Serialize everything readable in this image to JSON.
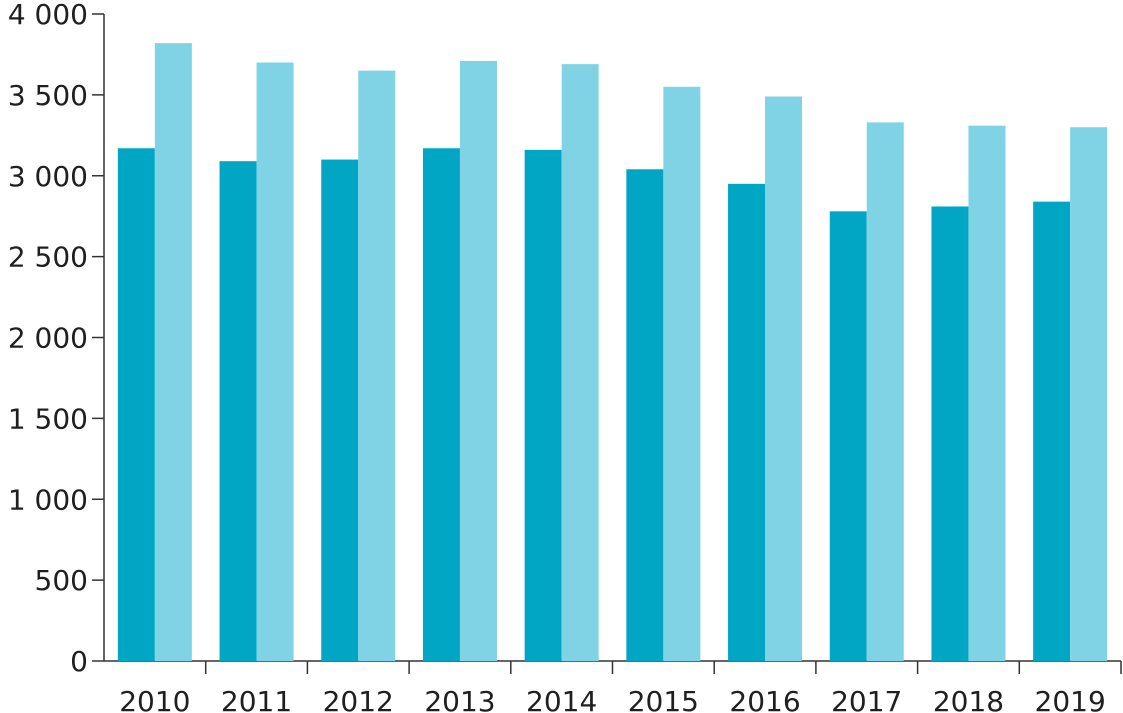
{
  "chart_data": {
    "type": "bar",
    "categories": [
      "2010",
      "2011",
      "2012",
      "2013",
      "2014",
      "2015",
      "2016",
      "2017",
      "2018",
      "2019"
    ],
    "series": [
      {
        "values": [
          3170,
          3090,
          3100,
          3170,
          3160,
          3040,
          2950,
          2780,
          2810,
          2840
        ],
        "color": "#00a6c4"
      },
      {
        "values": [
          3820,
          3700,
          3650,
          3710,
          3690,
          3550,
          3490,
          3330,
          3310,
          3300
        ],
        "color": "#7fd3e4"
      }
    ],
    "y_ticks": [
      "0",
      "500",
      "1 000",
      "1 500",
      "2 000",
      "2 500",
      "3 000",
      "3 500",
      "4 000"
    ],
    "ylim": [
      0,
      4000
    ],
    "title": "",
    "xlabel": "",
    "ylabel": "",
    "grid": false,
    "axis_color": "#333333"
  }
}
